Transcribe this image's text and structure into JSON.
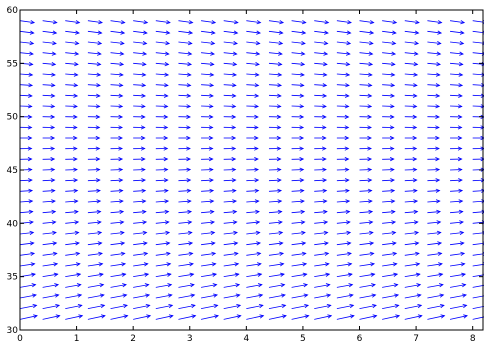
{
  "chart_data": {
    "type": "quiver",
    "title": "",
    "xlabel": "",
    "ylabel": "",
    "xlim": [
      0,
      8.2
    ],
    "ylim": [
      30,
      60
    ],
    "x_ticks": [
      "0",
      "1",
      "2",
      "3",
      "4",
      "5",
      "6",
      "7",
      "8"
    ],
    "y_ticks": [
      "30",
      "35",
      "40",
      "45",
      "50",
      "55",
      "60"
    ],
    "grid": false,
    "arrow_color": "#0000ff",
    "x_spacing": 0.4,
    "y_spacing": 1,
    "direction_field": {
      "equation": "dy/dx = 0.0667 * (48 - y)",
      "equilibrium_y": 48
    }
  }
}
